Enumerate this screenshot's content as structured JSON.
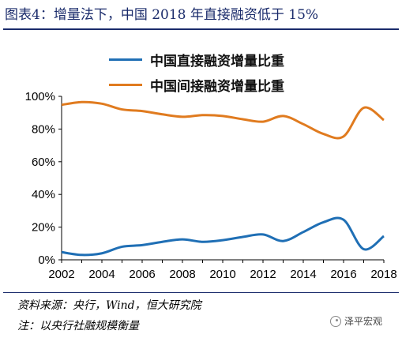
{
  "title": "图表4：增量法下，中国 2018 年直接融资低于 15%",
  "colors": {
    "title": "#1a2b6b",
    "direct": "#1f6fb5",
    "indirect": "#e07b1f",
    "axis": "#000000"
  },
  "chart_data": {
    "type": "line",
    "title": "图表4：增量法下，中国 2018 年直接融资低于 15%",
    "xlabel": "",
    "ylabel": "",
    "x": [
      2002,
      2003,
      2004,
      2005,
      2006,
      2007,
      2008,
      2009,
      2010,
      2011,
      2012,
      2013,
      2014,
      2015,
      2016,
      2017,
      2018
    ],
    "xticks": [
      "2002",
      "2004",
      "2006",
      "2008",
      "2010",
      "2012",
      "2014",
      "2016",
      "2018"
    ],
    "yticks": [
      "0%",
      "20%",
      "40%",
      "60%",
      "80%",
      "100%"
    ],
    "ylim": [
      0,
      100
    ],
    "xlim": [
      2002,
      2018
    ],
    "legend_position": "top",
    "grid": false,
    "series": [
      {
        "name": "中国直接融资增量比重",
        "color": "#1f6fb5",
        "values": [
          4.7,
          3.0,
          4.0,
          8.0,
          9.0,
          11.0,
          12.5,
          11.0,
          12.0,
          14.0,
          15.5,
          11.5,
          17.0,
          23.0,
          24.5,
          6.5,
          14.5
        ]
      },
      {
        "name": "中国间接融资增量比重",
        "color": "#e07b1f",
        "values": [
          94.8,
          96.5,
          95.5,
          92.0,
          91.0,
          89.0,
          87.5,
          88.5,
          88.0,
          86.0,
          84.5,
          88.0,
          83.0,
          77.0,
          75.5,
          93.0,
          85.5
        ]
      }
    ]
  },
  "footer": {
    "source": "资料来源：央行，Wind，恒大研究院",
    "note": "注：以央行社融规模衡量"
  },
  "watermark": {
    "text": "泽平宏观",
    "icon": "wechat-icon"
  }
}
